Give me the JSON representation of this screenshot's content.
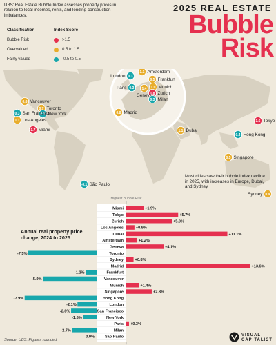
{
  "header": {
    "year_title": "2025 REAL ESTATE",
    "title_line1": "Bubble",
    "title_line2": "Risk",
    "intro": "UBS' Real Estate Bubble Index assesses property prices in relation to local incomes, rents, and lending-construction imbalances."
  },
  "legend": {
    "classification_header": "Classification",
    "index_header": "Index Score",
    "items": [
      {
        "label": "Bubble Risk",
        "range": ">1.5",
        "color": "#e5304f"
      },
      {
        "label": "Overvalued",
        "range": "0.5 to 1.5",
        "color": "#e8ad2c"
      },
      {
        "label": "Fairly valued",
        "range": "-0.5 to 0.5",
        "color": "#18a7ac"
      }
    ]
  },
  "map": {
    "note": "Most cities saw their bubble index decline in 2025, with increases in Europe, Dubai, and Sydney.",
    "colors": {
      "land": "#d8d1c1",
      "ocean": "#efe9dc",
      "zoom_ring": "#ffffff"
    },
    "cities": [
      {
        "name": "London",
        "score": "0.3",
        "class": "fair"
      },
      {
        "name": "Amsterdam",
        "score": "1.1",
        "class": "over"
      },
      {
        "name": "Frankfurt",
        "score": "0.5",
        "class": "over"
      },
      {
        "name": "Paris",
        "score": "0.3",
        "class": "fair"
      },
      {
        "name": "Munich",
        "score": "1.0",
        "class": "over"
      },
      {
        "name": "Zurich",
        "score": "1.8",
        "class": "bubble"
      },
      {
        "name": "Geneva",
        "score": "1.4",
        "class": "over"
      },
      {
        "name": "Milan",
        "score": "0.3",
        "class": "fair"
      },
      {
        "name": "Madrid",
        "score": "0.8",
        "class": "over"
      },
      {
        "name": "Vancouver",
        "score": "0.8",
        "class": "over"
      },
      {
        "name": "Toronto",
        "score": "0.7",
        "class": "over"
      },
      {
        "name": "New York",
        "score": "0.3",
        "class": "fair"
      },
      {
        "name": "San Francisco",
        "score": "0.3",
        "class": "fair"
      },
      {
        "name": "Los Angeles",
        "score": "1.1",
        "class": "over"
      },
      {
        "name": "Miami",
        "score": "1.7",
        "class": "bubble"
      },
      {
        "name": "Dubai",
        "score": "1.1",
        "class": "over"
      },
      {
        "name": "Tokyo",
        "score": "1.6",
        "class": "bubble"
      },
      {
        "name": "Hong Kong",
        "score": "0.4",
        "class": "fair"
      },
      {
        "name": "Singapore",
        "score": "0.5",
        "class": "over"
      },
      {
        "name": "São Paulo",
        "score": "-0.1",
        "class": "fair"
      },
      {
        "name": "Sydney",
        "score": "0.9",
        "class": "over"
      }
    ]
  },
  "chart_data": {
    "type": "bar",
    "title": "Annual real property price change, 2024 to 2025",
    "top_label": "Highest Bubble Risk",
    "bottom_label": "Lowest Bubble Risk",
    "orientation": "horizontal",
    "unit": "%",
    "colors": {
      "positive": "#e5304f",
      "negative": "#18a7ac"
    },
    "categories": [
      "Miami",
      "Tokyo",
      "Zurich",
      "Los Angeles",
      "Dubai",
      "Amsterdam",
      "Geneva",
      "Toronto",
      "Sydney",
      "Madrid",
      "Frankfurt",
      "Vancouver",
      "Munich",
      "Singapore",
      "Hong Kong",
      "London",
      "San Francisco",
      "New York",
      "Paris",
      "Milan",
      "São Paulo"
    ],
    "values": [
      1.9,
      5.7,
      5.0,
      0.9,
      11.1,
      1.2,
      4.1,
      -7.5,
      0.8,
      13.6,
      -1.2,
      -5.9,
      1.4,
      2.8,
      -7.9,
      -2.1,
      -2.8,
      -1.5,
      0.3,
      -2.7,
      0.0
    ],
    "labels": [
      "+1.9%",
      "+5.7%",
      "+5.0%",
      "+0.9%",
      "+11.1%",
      "+1.2%",
      "+4.1%",
      "-7.5%",
      "+0.8%",
      "+13.6%",
      "-1.2%",
      "-5.9%",
      "+1.4%",
      "+2.8%",
      "-7.9%",
      "-2.1%",
      "-2.8%",
      "-1.5%",
      "+0.3%",
      "-2.7%",
      "0.0%"
    ]
  },
  "footer": {
    "source": "Source: UBS. Figures rounded",
    "brand_line1": "VISUAL",
    "brand_line2": "CAPITALIST"
  }
}
